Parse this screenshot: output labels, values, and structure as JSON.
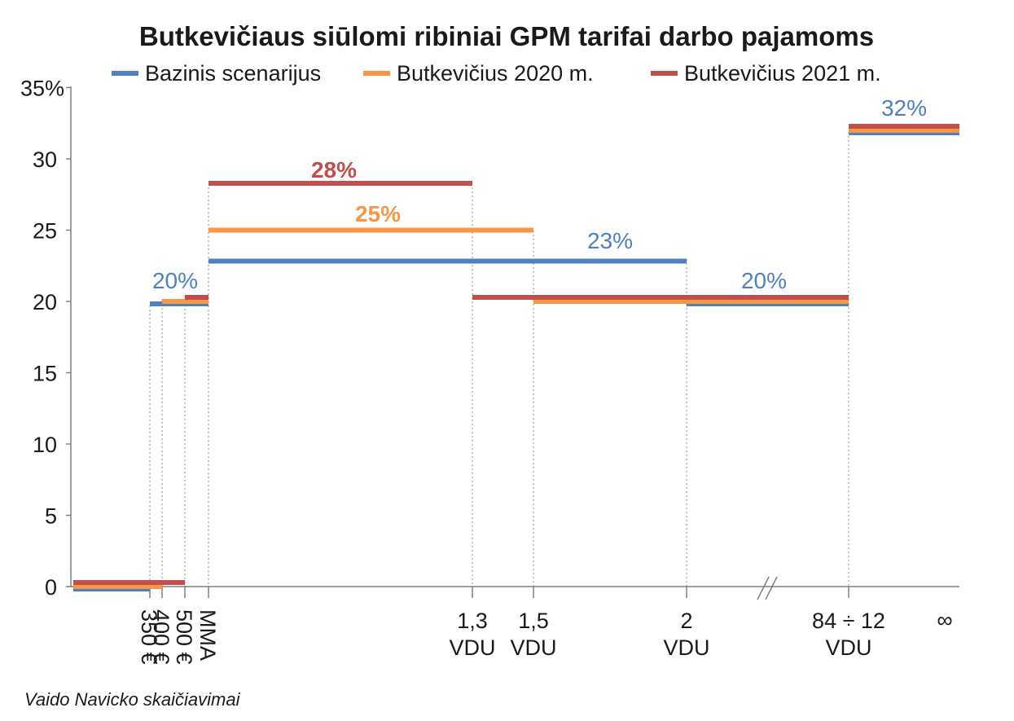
{
  "chart_data": {
    "type": "line",
    "title": "Butkevičiaus siūlomi ribiniai GPM tarifai darbo pajamoms",
    "source": "Vaido Navicko skaičiavimai",
    "ylim": [
      0,
      35
    ],
    "y_ticks": [
      "0",
      "5",
      "10",
      "15",
      "20",
      "25",
      "30",
      "35%"
    ],
    "x_ticks": [
      {
        "label": [
          "350 €"
        ],
        "rotated": true
      },
      {
        "label": [
          "400 €"
        ],
        "rotated": true
      },
      {
        "label": [
          "500 €"
        ],
        "rotated": true
      },
      {
        "label": [
          "MMA"
        ],
        "rotated": true
      },
      {
        "label": [
          "1,3",
          "VDU"
        ],
        "rotated": false
      },
      {
        "label": [
          "1,5",
          "VDU"
        ],
        "rotated": false
      },
      {
        "label": [
          "2",
          "VDU"
        ],
        "rotated": false
      },
      {
        "label": [
          "84 ÷ 12",
          "VDU"
        ],
        "rotated": false
      },
      {
        "label": [
          "∞"
        ],
        "rotated": false
      }
    ],
    "axis_break": "//",
    "grid": false,
    "legend_position": "top",
    "series": [
      {
        "name": "Bazinis scenarijus",
        "color": "#4f81bd",
        "steps": [
          {
            "from": "",
            "to": "350 €",
            "value": 0
          },
          {
            "from": "350 €",
            "to": "MMA",
            "value": 20
          },
          {
            "from": "MMA",
            "to": "2 VDU",
            "value": 23
          },
          {
            "from": "2 VDU",
            "to": "84 ÷ 12 VDU",
            "value": 20
          },
          {
            "from": "84 ÷ 12 VDU",
            "to": "∞",
            "value": 32
          }
        ]
      },
      {
        "name": "Butkevičius 2020 m.",
        "color": "#f79646",
        "steps": [
          {
            "from": "",
            "to": "400 €",
            "value": 0
          },
          {
            "from": "400 €",
            "to": "MMA",
            "value": 20
          },
          {
            "from": "MMA",
            "to": "1,5 VDU",
            "value": 25
          },
          {
            "from": "1,5 VDU",
            "to": "84 ÷ 12 VDU",
            "value": 20
          },
          {
            "from": "84 ÷ 12 VDU",
            "to": "∞",
            "value": 32
          }
        ]
      },
      {
        "name": "Butkevičius 2021 m.",
        "color": "#c0504d",
        "steps": [
          {
            "from": "",
            "to": "500 €",
            "value": 0
          },
          {
            "from": "500 €",
            "to": "MMA",
            "value": 20
          },
          {
            "from": "MMA",
            "to": "1,3 VDU",
            "value": 28
          },
          {
            "from": "1,3 VDU",
            "to": "84 ÷ 12 VDU",
            "value": 20
          },
          {
            "from": "84 ÷ 12 VDU",
            "to": "∞",
            "value": 32
          }
        ]
      }
    ],
    "annotations": [
      {
        "text": "28%",
        "color": "#c0504d",
        "bold": true
      },
      {
        "text": "25%",
        "color": "#f79646",
        "bold": true
      },
      {
        "text": "23%",
        "color": "#4f81bd",
        "bold": false
      },
      {
        "text": "20%",
        "color": "#4f81bd",
        "bold": false
      },
      {
        "text": "20%",
        "color": "#4f81bd",
        "bold": false
      },
      {
        "text": "32%",
        "color": "#4f81bd",
        "bold": false
      }
    ]
  }
}
